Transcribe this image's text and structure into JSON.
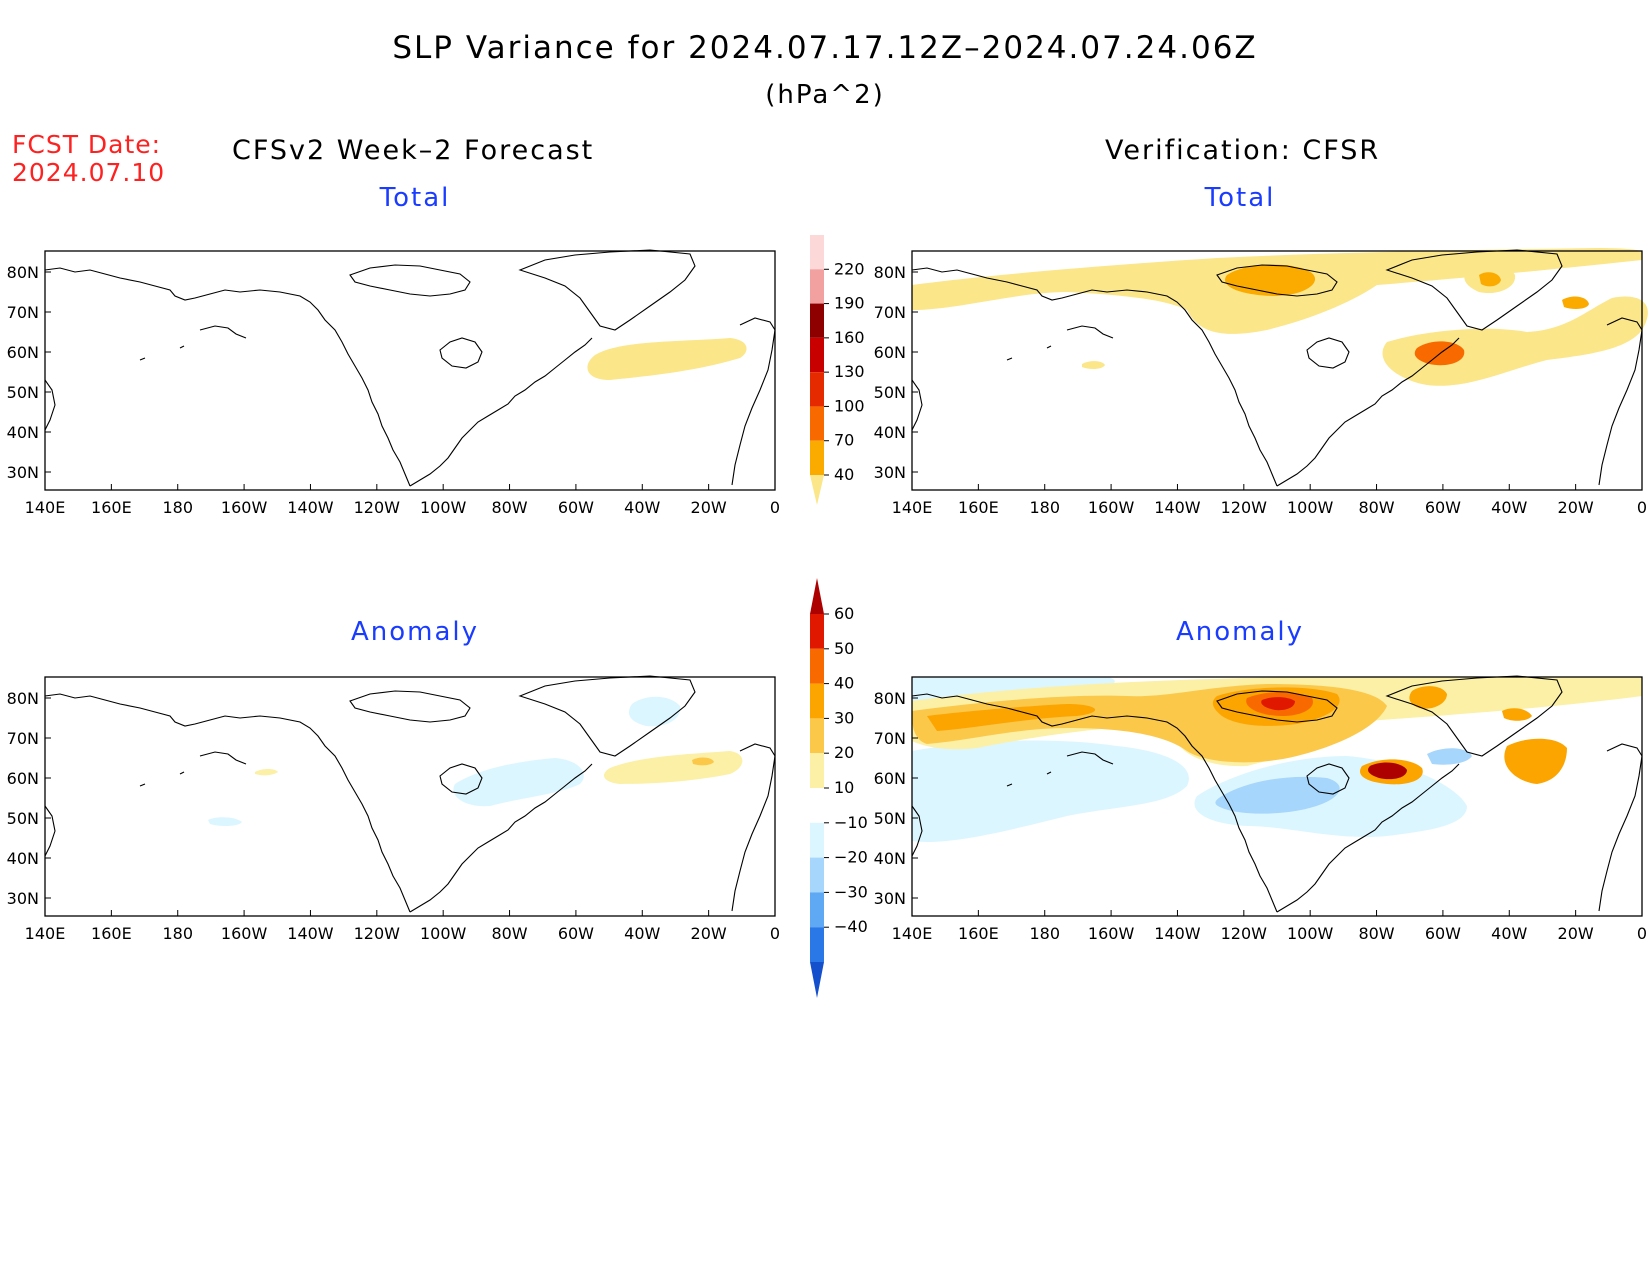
{
  "title": "SLP Variance for 2024.07.17.12Z–2024.07.24.06Z",
  "units": "(hPa^2)",
  "fcst_date_label": "FCST Date:",
  "fcst_date": "2024.07.10",
  "left_header": "CFSv2 Week–2 Forecast",
  "right_header": "Verification: CFSR",
  "panels": {
    "forecast_total": {
      "subtitle": "Total"
    },
    "verification_total": {
      "subtitle": "Total"
    },
    "forecast_anomaly": {
      "subtitle": "Anomaly"
    },
    "verification_anomaly": {
      "subtitle": "Anomaly"
    }
  },
  "axes": {
    "lon_labels": [
      "140E",
      "160E",
      "180",
      "160W",
      "140W",
      "120W",
      "100W",
      "80W",
      "60W",
      "40W",
      "20W",
      "0"
    ],
    "lat_labels": [
      "80N",
      "70N",
      "60N",
      "50N",
      "40N",
      "30N"
    ]
  },
  "colorbars": {
    "total": {
      "levels": [
        "40",
        "70",
        "100",
        "130",
        "160",
        "190",
        "220"
      ],
      "colors": [
        "#fbe68a",
        "#fbaa00",
        "#f86a00",
        "#e62a00",
        "#c80000",
        "#8e0000",
        "#f3a0a0",
        "#fcd8d8",
        "#ffffff"
      ]
    },
    "anomaly": {
      "levels": [
        "60",
        "50",
        "40",
        "30",
        "20",
        "10",
        "−10",
        "−20",
        "−30",
        "−40"
      ],
      "colors": [
        "#ad0000",
        "#e01800",
        "#f86a00",
        "#fca400",
        "#fbc84a",
        "#fbf0a6",
        "#ffffff",
        "#dcf6ff",
        "#a6d6fb",
        "#5ea8f4",
        "#2a78e8",
        "#1550cc"
      ]
    }
  },
  "colors": {
    "land_outline": "#000000",
    "subtitle_blue": "#1a3cff",
    "fcst_red": "#ff2020"
  }
}
